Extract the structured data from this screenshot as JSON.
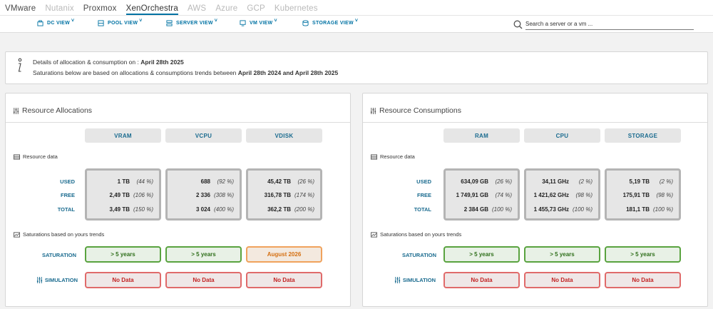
{
  "topnav": {
    "tabs": [
      {
        "label": "VMware",
        "style": "dark"
      },
      {
        "label": "Nutanix",
        "style": "muted"
      },
      {
        "label": "Proxmox",
        "style": "dark"
      },
      {
        "label": "XenOrchestra",
        "style": "active"
      },
      {
        "label": "AWS",
        "style": "muted"
      },
      {
        "label": "Azure",
        "style": "muted"
      },
      {
        "label": "GCP",
        "style": "muted"
      },
      {
        "label": "Kubernetes",
        "style": "muted"
      }
    ]
  },
  "subnav": {
    "dc_view": "DC VIEW",
    "pool_view": "POOL VIEW",
    "server_view": "SERVER VIEW",
    "vm_view": "VM VIEW",
    "storage_view": "STORAGE VIEW",
    "search_placeholder": "Search a server or a vm ..."
  },
  "info": {
    "line1_prefix": "Details of allocation & consumption on : ",
    "line1_date": "April 28th 2025",
    "line2_prefix": "Saturations below are based on allocations & consumptions trends between ",
    "line2_range": "April 28th 2024 and April 28th 2025"
  },
  "labels": {
    "resource_data": "Resource data",
    "saturations": "Saturations based on yours trends",
    "used": "USED",
    "free": "FREE",
    "total": "TOTAL",
    "saturation": "SATURATION",
    "simulation": "SIMULATION"
  },
  "allocations": {
    "title": "Resource Allocations",
    "columns": [
      {
        "name": "VRAM",
        "used": "1 TB",
        "used_pct": "(44 %)",
        "free": "2,49 TB",
        "free_pct": "(106 %)",
        "total": "3,49 TB",
        "total_pct": "(150 %)",
        "saturation": "> 5 years",
        "sat_state": "ok",
        "simulation": "No Data"
      },
      {
        "name": "VCPU",
        "used": "688",
        "used_pct": "(92 %)",
        "free": "2 336",
        "free_pct": "(308 %)",
        "total": "3 024",
        "total_pct": "(400 %)",
        "saturation": "> 5 years",
        "sat_state": "ok",
        "simulation": "No Data"
      },
      {
        "name": "VDISK",
        "used": "45,42 TB",
        "used_pct": "(26 %)",
        "free": "316,78 TB",
        "free_pct": "(174 %)",
        "total": "362,2 TB",
        "total_pct": "(200 %)",
        "saturation": "August 2026",
        "sat_state": "warn",
        "simulation": "No Data"
      }
    ]
  },
  "consumptions": {
    "title": "Resource Consumptions",
    "columns": [
      {
        "name": "RAM",
        "used": "634,09 GB",
        "used_pct": "(26 %)",
        "free": "1 749,91 GB",
        "free_pct": "(74 %)",
        "total": "2 384 GB",
        "total_pct": "(100 %)",
        "saturation": "> 5 years",
        "sat_state": "ok",
        "simulation": "No Data"
      },
      {
        "name": "CPU",
        "used": "34,11 GHz",
        "used_pct": "(2 %)",
        "free": "1 421,62 GHz",
        "free_pct": "(98 %)",
        "total": "1 455,73 GHz",
        "total_pct": "(100 %)",
        "saturation": "> 5 years",
        "sat_state": "ok",
        "simulation": "No Data"
      },
      {
        "name": "STORAGE",
        "used": "5,19 TB",
        "used_pct": "(2 %)",
        "free": "175,91 TB",
        "free_pct": "(98 %)",
        "total": "181,1 TB",
        "total_pct": "(100 %)",
        "saturation": "> 5 years",
        "sat_state": "ok",
        "simulation": "No Data"
      }
    ]
  },
  "colors": {
    "accent": "#0072a3",
    "ok": "#59a33f",
    "warn": "#f0a25c",
    "bad": "#e06a6a"
  }
}
